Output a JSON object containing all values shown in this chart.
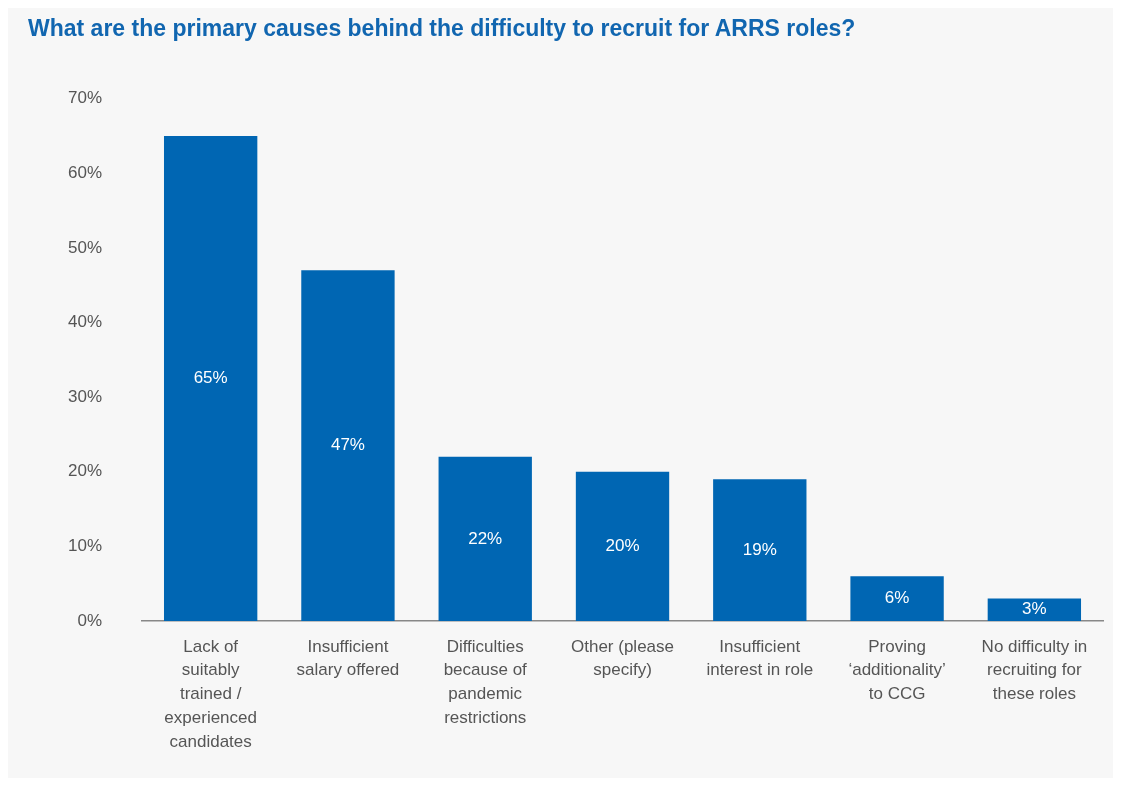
{
  "chart_data": {
    "type": "bar",
    "title": "What are the primary causes behind the difficulty to recruit for ARRS roles?",
    "categories": [
      "Lack of suitably trained / experienced candidates",
      "Insufficient salary offered",
      "Difficulties because of pandemic restrictions",
      "Other (please specify)",
      "Insufficient interest in role",
      "Proving ‘additionality’ to CCG",
      "No difficulty in recruiting for these roles"
    ],
    "values": [
      65,
      47,
      22,
      20,
      19,
      6,
      3
    ],
    "color": "#0066b3",
    "ylim": [
      0,
      70
    ],
    "yticks": [
      {
        "value": 0,
        "label": "0%"
      },
      {
        "value": 10,
        "label": "10%"
      },
      {
        "value": 20,
        "label": "20%"
      },
      {
        "value": 30,
        "label": "30%"
      },
      {
        "value": 40,
        "label": "40%"
      },
      {
        "value": 50,
        "label": "50%"
      },
      {
        "value": 60,
        "label": "60%"
      },
      {
        "value": 70,
        "label": "70%"
      }
    ],
    "value_labels": [
      "65%",
      "47%",
      "22%",
      "20%",
      "19%",
      "6%",
      "3%"
    ],
    "grid": false,
    "legend": false
  }
}
